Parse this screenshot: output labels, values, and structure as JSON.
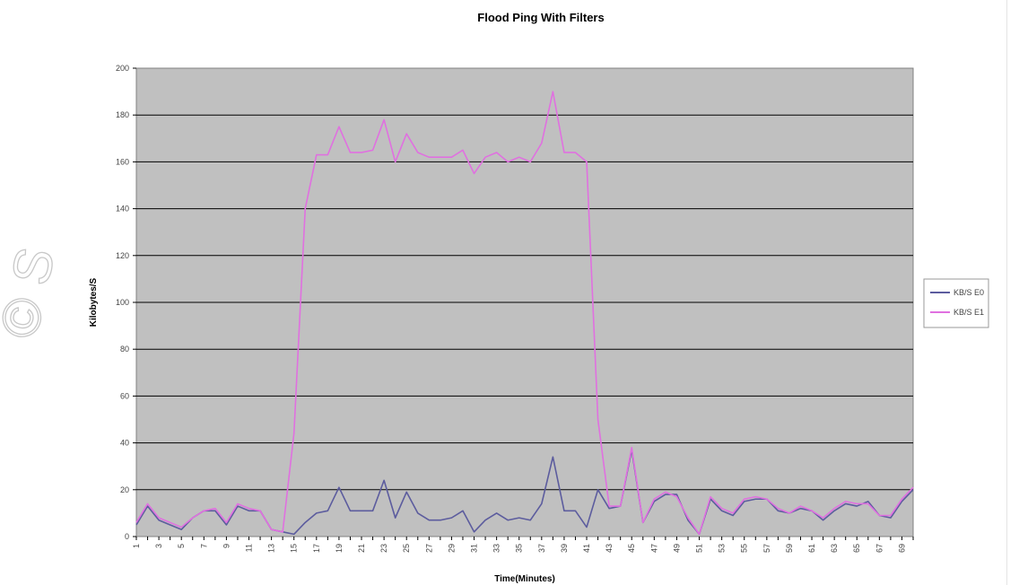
{
  "chart_data": {
    "type": "line",
    "title": "Flood Ping With Filters",
    "xlabel": "Time(Minutes)",
    "ylabel": "Kilobytes/S",
    "ylim": [
      0,
      200
    ],
    "yticks": [
      0,
      20,
      40,
      60,
      80,
      100,
      120,
      140,
      160,
      180,
      200
    ],
    "x": [
      1,
      2,
      3,
      4,
      5,
      6,
      7,
      8,
      9,
      10,
      11,
      12,
      13,
      14,
      15,
      16,
      17,
      18,
      19,
      20,
      21,
      22,
      23,
      24,
      25,
      26,
      27,
      28,
      29,
      30,
      31,
      32,
      33,
      34,
      35,
      36,
      37,
      38,
      39,
      40,
      41,
      42,
      43,
      44,
      45,
      46,
      47,
      48,
      49,
      50,
      51,
      52,
      53,
      54,
      55,
      56,
      57,
      58,
      59,
      60,
      61,
      62,
      63,
      64,
      65,
      66,
      67,
      68,
      69,
      70
    ],
    "xtick_labels": [
      "1",
      "3",
      "5",
      "7",
      "9",
      "11",
      "13",
      "15",
      "17",
      "19",
      "21",
      "23",
      "25",
      "27",
      "29",
      "31",
      "33",
      "35",
      "37",
      "39",
      "41",
      "43",
      "45",
      "47",
      "49",
      "51",
      "53",
      "55",
      "57",
      "59",
      "61",
      "63",
      "65",
      "67",
      "69"
    ],
    "grid": true,
    "legend_position": "right",
    "plot_background": "#c0c0c0",
    "series": [
      {
        "name": "KB/S E0",
        "color": "#5c5c9e",
        "values": [
          5,
          13,
          7,
          5,
          3,
          8,
          11,
          11,
          5,
          13,
          11,
          11,
          3,
          2,
          1,
          6,
          10,
          11,
          21,
          11,
          11,
          11,
          24,
          8,
          19,
          10,
          7,
          7,
          8,
          11,
          2,
          7,
          10,
          7,
          8,
          7,
          14,
          34,
          11,
          11,
          4,
          20,
          12,
          13,
          37,
          6,
          15,
          18,
          18,
          7,
          1,
          16,
          11,
          9,
          15,
          16,
          16,
          11,
          10,
          12,
          11,
          7,
          11,
          14,
          13,
          15,
          9,
          8,
          15,
          20
        ]
      },
      {
        "name": "KB/S E1",
        "color": "#e070e0",
        "values": [
          6,
          14,
          8,
          6,
          4,
          8,
          11,
          12,
          6,
          14,
          12,
          11,
          3,
          2,
          44,
          140,
          163,
          163,
          175,
          164,
          164,
          165,
          178,
          160,
          172,
          164,
          162,
          162,
          162,
          165,
          155,
          162,
          164,
          160,
          162,
          160,
          168,
          190,
          164,
          164,
          160,
          50,
          13,
          13,
          38,
          6,
          16,
          19,
          17,
          8,
          1,
          17,
          12,
          10,
          16,
          17,
          16,
          12,
          10,
          13,
          11,
          8,
          12,
          15,
          14,
          14,
          9,
          9,
          16,
          21
        ]
      }
    ]
  },
  "watermark": "© S"
}
